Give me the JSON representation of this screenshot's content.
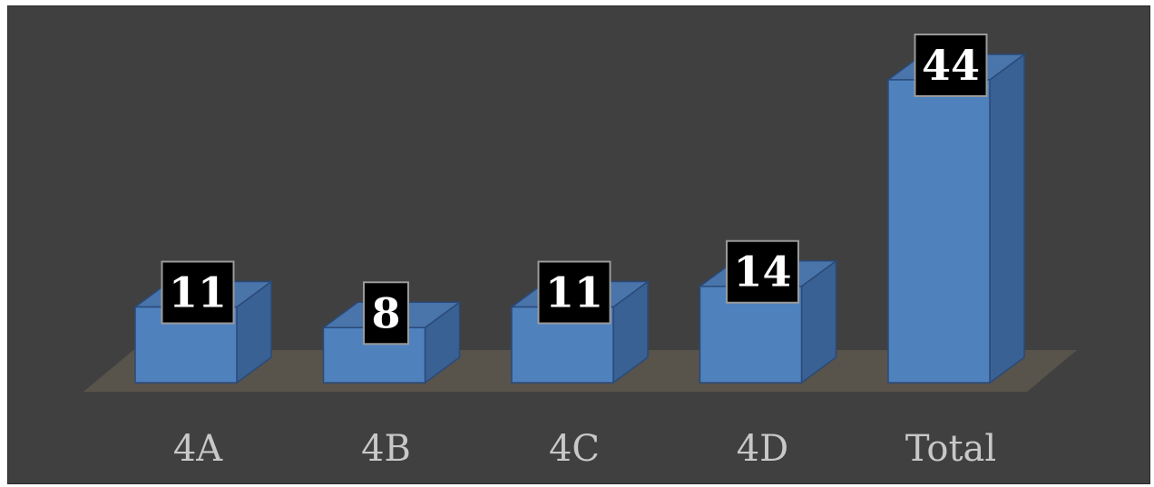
{
  "chart_data": {
    "type": "bar",
    "style": "3d-column",
    "categories": [
      "4A",
      "4B",
      "4C",
      "4D",
      "Total"
    ],
    "values": [
      11,
      8,
      11,
      14,
      44
    ],
    "data_labels": [
      "11",
      "8",
      "11",
      "14",
      "44"
    ],
    "title": "",
    "xlabel": "",
    "ylabel": "",
    "ylim": [
      0,
      44
    ],
    "grid": false,
    "legend": "none",
    "colors": {
      "background": "#404040",
      "bar_front": "#4f81bd",
      "bar_side": "#3a6193",
      "bar_top": "#4a75ab",
      "bar_edge": "#2a4a78",
      "floor": "#58534b",
      "category_text": "#c8c8c8",
      "label_bg": "#000000",
      "label_border": "#9a9a9a",
      "label_text": "#ffffff"
    }
  }
}
